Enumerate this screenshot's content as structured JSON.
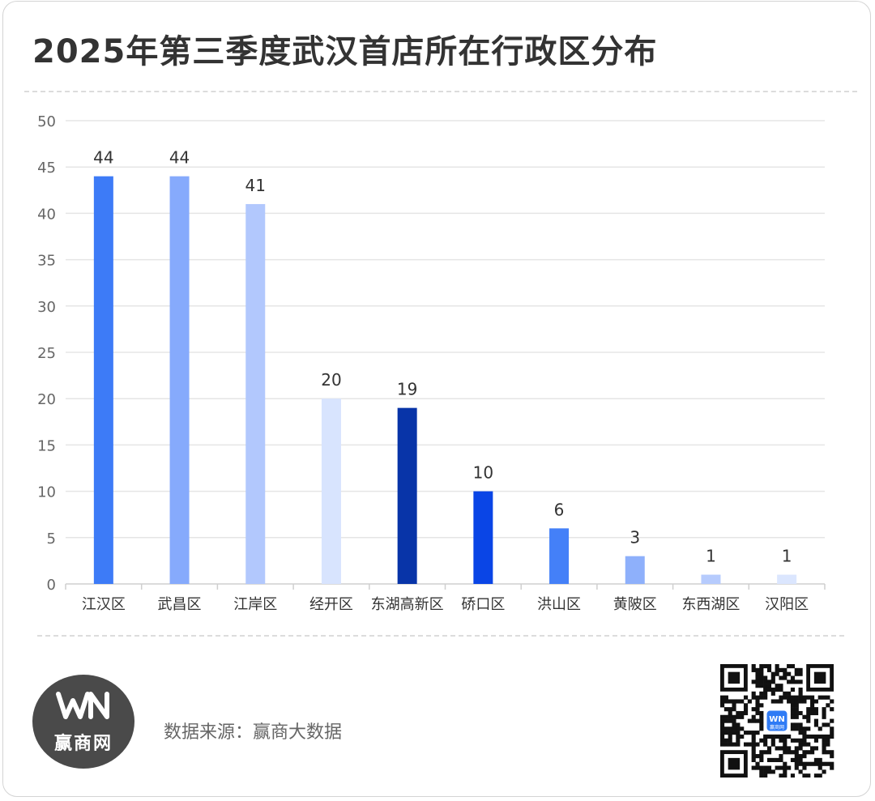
{
  "title": "2025年第三季度武汉首店所在行政区分布",
  "source_text": "数据来源：赢商大数据",
  "logo": {
    "brand_mark": "WN",
    "brand_name": "赢商网"
  },
  "qr": {
    "badge": "WN",
    "badge_sub": "赢商网"
  },
  "colors": {
    "text": "#333333",
    "muted": "#666666",
    "grid": "#e5e5e5",
    "axis": "#cfcfcf",
    "logo_bg": "#4a4a4a"
  },
  "chart_data": {
    "type": "bar",
    "categories": [
      "江汉区",
      "武昌区",
      "江岸区",
      "经开区",
      "东湖高新区",
      "硚口区",
      "洪山区",
      "黄陂区",
      "东西湖区",
      "汉阳区"
    ],
    "values": [
      44,
      44,
      41,
      20,
      19,
      10,
      6,
      3,
      1,
      1
    ],
    "bar_colors": [
      "#3d7bf7",
      "#86aafc",
      "#b2c8fd",
      "#d8e4fe",
      "#0834a8",
      "#0a45e6",
      "#4480f8",
      "#8eb0fb",
      "#b6cbfd",
      "#dbe6fe"
    ],
    "ylim": [
      0,
      50
    ],
    "yticks": [
      0,
      5,
      10,
      15,
      20,
      25,
      30,
      35,
      40,
      45,
      50
    ],
    "grid": true,
    "legend": "none",
    "data_labels": true
  }
}
